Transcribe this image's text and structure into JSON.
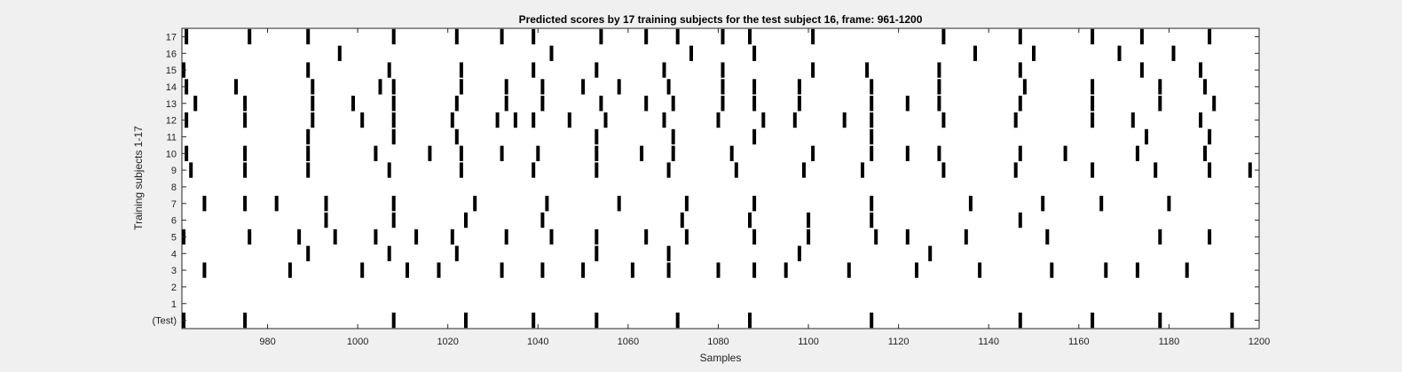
{
  "chart_data": {
    "type": "scatter",
    "title": "Predicted scores by 17 training subjects for the test subject 16, frame: 961-1200",
    "xlabel": "Samples",
    "ylabel": "Training subjects 1-17",
    "xlim": [
      961,
      1200
    ],
    "ylim": [
      -0.5,
      17.5
    ],
    "x_ticks": [
      980,
      1000,
      1020,
      1040,
      1060,
      1080,
      1100,
      1120,
      1140,
      1160,
      1180,
      1200
    ],
    "y_tick_labels": [
      "(Test)",
      "1",
      "2",
      "3",
      "4",
      "5",
      "6",
      "7",
      "8",
      "9",
      "10",
      "11",
      "12",
      "13",
      "14",
      "15",
      "16",
      "17"
    ],
    "grid": false,
    "marker_color": "#000000",
    "background": "#ffffff",
    "figure_background": "#f0f0f0",
    "rows": [
      {
        "label": "(Test)",
        "x": [
          961,
          975,
          1008,
          1024,
          1039,
          1053,
          1071,
          1087,
          1114,
          1147,
          1163,
          1178,
          1194
        ]
      },
      {
        "label": "1",
        "x": []
      },
      {
        "label": "2",
        "x": []
      },
      {
        "label": "3",
        "x": [
          966,
          985,
          1001,
          1011,
          1018,
          1032,
          1041,
          1050,
          1061,
          1069,
          1080,
          1088,
          1095,
          1109,
          1124,
          1138,
          1154,
          1166,
          1173,
          1184
        ]
      },
      {
        "label": "4",
        "x": [
          989,
          1007,
          1022,
          1053,
          1069,
          1098,
          1127
        ]
      },
      {
        "label": "5",
        "x": [
          961,
          976,
          987,
          995,
          1004,
          1013,
          1021,
          1033,
          1043,
          1053,
          1064,
          1073,
          1088,
          1100,
          1115,
          1122,
          1135,
          1153,
          1178,
          1189
        ]
      },
      {
        "label": "6",
        "x": [
          993,
          1008,
          1024,
          1041,
          1072,
          1087,
          1100,
          1114,
          1147
        ]
      },
      {
        "label": "7",
        "x": [
          966,
          975,
          982,
          993,
          1008,
          1026,
          1042,
          1058,
          1073,
          1088,
          1114,
          1136,
          1152,
          1165,
          1180
        ]
      },
      {
        "label": "8",
        "x": []
      },
      {
        "label": "9",
        "x": [
          963,
          975,
          989,
          1007,
          1023,
          1039,
          1053,
          1069,
          1084,
          1099,
          1112,
          1130,
          1146,
          1163,
          1177,
          1189,
          1198
        ]
      },
      {
        "label": "10",
        "x": [
          962,
          975,
          989,
          1004,
          1016,
          1023,
          1032,
          1040,
          1053,
          1063,
          1070,
          1083,
          1101,
          1114,
          1122,
          1129,
          1147,
          1157,
          1173,
          1188
        ]
      },
      {
        "label": "11",
        "x": [
          989,
          1008,
          1022,
          1053,
          1070,
          1088,
          1114,
          1175,
          1189
        ]
      },
      {
        "label": "12",
        "x": [
          962,
          975,
          990,
          1001,
          1008,
          1021,
          1031,
          1035,
          1039,
          1047,
          1055,
          1068,
          1080,
          1090,
          1097,
          1108,
          1114,
          1130,
          1146,
          1163,
          1172,
          1187
        ]
      },
      {
        "label": "13",
        "x": [
          964,
          975,
          990,
          999,
          1008,
          1022,
          1033,
          1041,
          1054,
          1064,
          1070,
          1081,
          1088,
          1098,
          1114,
          1122,
          1129,
          1147,
          1163,
          1178,
          1190
        ]
      },
      {
        "label": "14",
        "x": [
          962,
          973,
          990,
          1005,
          1008,
          1023,
          1033,
          1041,
          1050,
          1058,
          1069,
          1081,
          1088,
          1098,
          1114,
          1129,
          1148,
          1163,
          1178,
          1188
        ]
      },
      {
        "label": "15",
        "x": [
          961,
          989,
          1007,
          1023,
          1039,
          1053,
          1068,
          1081,
          1101,
          1113,
          1129,
          1147,
          1174,
          1187
        ]
      },
      {
        "label": "16",
        "x": [
          996,
          1043,
          1074,
          1088,
          1137,
          1150,
          1169,
          1181
        ]
      },
      {
        "label": "17",
        "x": [
          962,
          976,
          989,
          1008,
          1022,
          1032,
          1039,
          1054,
          1064,
          1071,
          1081,
          1087,
          1101,
          1130,
          1147,
          1163,
          1174,
          1189
        ]
      }
    ]
  }
}
